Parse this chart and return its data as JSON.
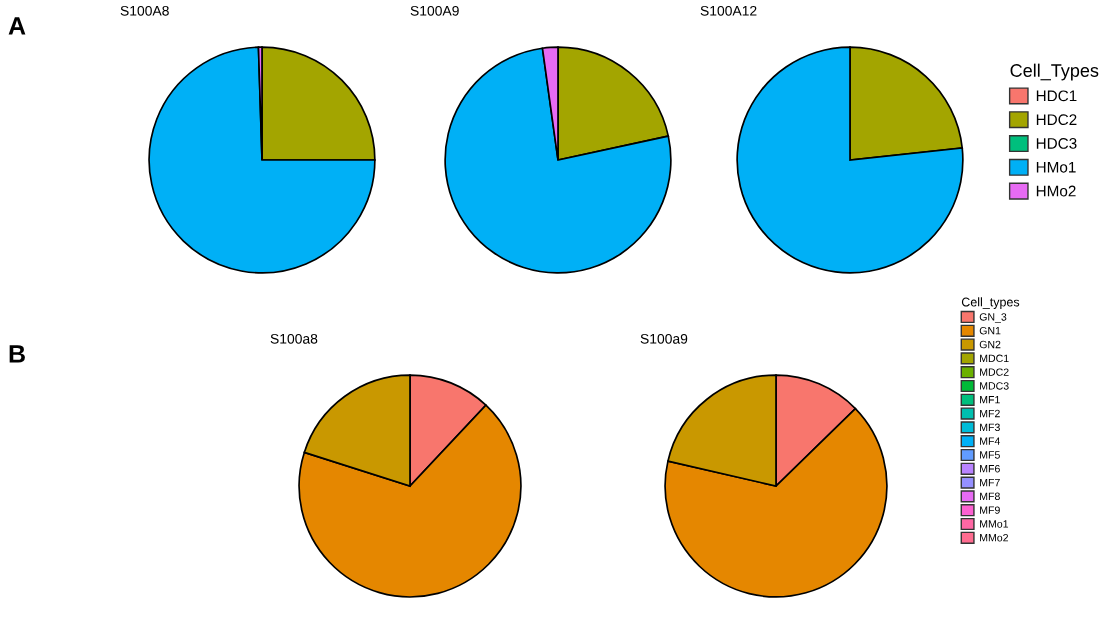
{
  "chart_data": [
    {
      "type": "pie",
      "title": "S100A8",
      "annotations": [
        "A"
      ],
      "legend": "right",
      "legend_title": "Cell_Types",
      "categories": [
        "HDC1",
        "HDC2",
        "HDC3",
        "HMo1",
        "HMo2"
      ],
      "values": [
        0,
        25,
        0,
        74.5,
        0.5
      ],
      "colors": [
        "#f8766d",
        "#a3a500",
        "#00bf7d",
        "#00b0f6",
        "#e76bf3"
      ]
    },
    {
      "type": "pie",
      "title": "S100A9",
      "categories": [
        null,
        null,
        null,
        null,
        null
      ],
      "values": [
        0,
        21.6,
        0,
        76.2,
        2.2
      ],
      "colors": [
        "#f8766d",
        "#a3a500",
        "#00bf7d",
        "#00b0f6",
        "#e76bf3"
      ]
    },
    {
      "type": "pie",
      "title": "S100A12",
      "categories": [
        null,
        null,
        null,
        null,
        null
      ],
      "values": [
        0,
        23.3,
        0,
        76.7,
        0
      ],
      "colors": [
        "#f8766d",
        "#a3a500",
        "#00bf7d",
        "#00b0f6",
        "#e76bf3"
      ]
    },
    {
      "type": "pie",
      "title": "S100a8",
      "annotations": [
        "B"
      ],
      "legend": "right",
      "legend_title": "Cell_types",
      "categories": [
        "GN_3",
        "GN1",
        "GN2",
        "MDC1",
        "MDC2",
        "MDC3",
        "MF1",
        "MF2",
        "MF3",
        "MF4",
        "MF5",
        "MF6",
        "MF7",
        "MF8",
        "MF9",
        "MMo1",
        "MMo2"
      ],
      "values": [
        12,
        67.9,
        20.1,
        0,
        0,
        0,
        0,
        0,
        0,
        0,
        0,
        0,
        0,
        0,
        0,
        0,
        0
      ],
      "colors": [
        "#f8766d",
        "#e58700",
        "#c99800",
        "#a3a500",
        "#6bb100",
        "#00ba38",
        "#00bf7d",
        "#00c0af",
        "#00bcd8",
        "#00b0f6",
        "#619cff",
        "#b983ff",
        "#9590ff",
        "#e76bf3",
        "#fd61d1",
        "#ff67a4",
        "#ff6c90"
      ]
    },
    {
      "type": "pie",
      "title": "S100a9",
      "categories": [
        null,
        null,
        null,
        null,
        null,
        null,
        null,
        null,
        null,
        null,
        null,
        null,
        null,
        null,
        null,
        null,
        null
      ],
      "values": [
        12.7,
        65.9,
        21.4,
        0,
        0,
        0,
        0,
        0,
        0,
        0,
        0,
        0,
        0,
        0,
        0,
        0,
        0
      ],
      "colors": [
        "#f8766d",
        "#e58700",
        "#c99800",
        "#a3a500",
        "#6bb100",
        "#00ba38",
        "#00bf7d",
        "#00c0af",
        "#00bcd8",
        "#00b0f6",
        "#619cff",
        "#b983ff",
        "#9590ff",
        "#e76bf3",
        "#fd61d1",
        "#ff67a4",
        "#ff6c90"
      ]
    }
  ]
}
